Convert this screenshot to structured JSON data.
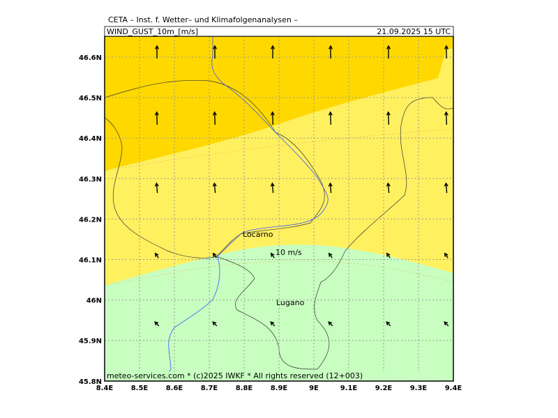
{
  "header": {
    "title": "CETA – Inst. f. Wetter– und Klimafolgenanalysen –",
    "parameter": "WIND_GUST_10m_[m/s]",
    "valid": "21.09.2025 15 UTC"
  },
  "axes": {
    "x_labels": [
      "8.4E",
      "8.5E",
      "8.6E",
      "8.7E",
      "8.8E",
      "8.9E",
      "9E",
      "9.1E",
      "9.2E",
      "9.3E",
      "9.4E"
    ],
    "y_labels": [
      "46.6N",
      "46.5N",
      "46.4N",
      "46.3N",
      "46.2N",
      "46.1N",
      "46N",
      "45.9N",
      "45.8N"
    ]
  },
  "places": [
    {
      "label": "Locarno"
    },
    {
      "label": "Lugano"
    }
  ],
  "contour_label": "10 m/s",
  "footer": "meteo-services.com * (c)2025 IWKF * All rights reserved (12+003)"
}
